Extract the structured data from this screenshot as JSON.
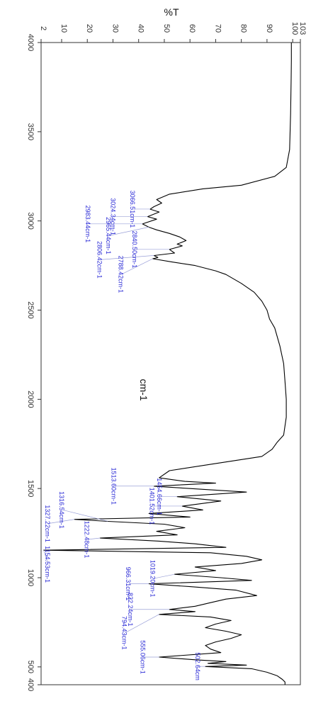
{
  "chart_data": {
    "type": "line",
    "orientation": "rotated-90-clockwise",
    "xlabel": "cm-1",
    "ylabel": "%T",
    "xlim": [
      4000,
      400
    ],
    "ylim": [
      2,
      103
    ],
    "x_ticks": [
      4000,
      3500,
      3000,
      2500,
      2000,
      1500,
      1000,
      500,
      400
    ],
    "y_ticks": [
      2,
      10,
      20,
      30,
      40,
      50,
      60,
      70,
      80,
      90,
      100,
      103
    ],
    "x_tick_labels": [
      "4000",
      "3500",
      "3000",
      "2500",
      "2000",
      "1500",
      "1000",
      "500",
      "400"
    ],
    "y_tick_labels": [
      "2",
      "10",
      "20",
      "30",
      "40",
      "50",
      "60",
      "70",
      "80",
      "90",
      "100",
      "103"
    ],
    "line_color": "#000000",
    "label_color": "#2b2bd6",
    "series": [
      {
        "x": [
          4000,
          3900,
          3800,
          3700,
          3600,
          3500,
          3400,
          3300,
          3250,
          3200,
          3180,
          3150,
          3120,
          3100,
          3080,
          3066,
          3050,
          3024,
          3010,
          2983,
          2965,
          2950,
          2930,
          2910,
          2890,
          2870,
          2860,
          2840,
          2820,
          2806,
          2795,
          2788,
          2770,
          2750,
          2720,
          2700,
          2650,
          2600,
          2550,
          2500,
          2450,
          2400,
          2300,
          2200,
          2100,
          2000,
          1900,
          1800,
          1760,
          1720,
          1680,
          1640,
          1600,
          1560,
          1540,
          1530,
          1513,
          1500,
          1480,
          1454,
          1430,
          1401,
          1380,
          1360,
          1340,
          1327,
          1316,
          1300,
          1280,
          1260,
          1240,
          1222,
          1205,
          1190,
          1170,
          1154,
          1140,
          1120,
          1100,
          1080,
          1060,
          1040,
          1019,
          1000,
          985,
          966,
          950,
          930,
          900,
          880,
          860,
          840,
          822,
          810,
          794,
          780,
          760,
          740,
          720,
          700,
          680,
          660,
          640,
          620,
          600,
          580,
          555,
          540,
          530,
          520,
          510,
          502,
          490,
          470,
          450,
          430,
          415,
          400
        ],
        "y": [
          99.5,
          99.5,
          99.4,
          99.3,
          99.2,
          99.0,
          98.8,
          97.5,
          93,
          80,
          65,
          52,
          47,
          49,
          46,
          44.5,
          48,
          43.5,
          47,
          41.5,
          44,
          47,
          52,
          56,
          58.5,
          55,
          57,
          52,
          54,
          46,
          47.5,
          45.5,
          53,
          62,
          70,
          74,
          80,
          85,
          88,
          90,
          91,
          93,
          95,
          96.5,
          97,
          97.5,
          97.5,
          96.5,
          94,
          92,
          88,
          70,
          52,
          48,
          58,
          70,
          46,
          60,
          82,
          55,
          72,
          57,
          65,
          44,
          60,
          15,
          28,
          50,
          58,
          47,
          55,
          25,
          48,
          62,
          74,
          3,
          68,
          82,
          88,
          80,
          62,
          70,
          54,
          72,
          84,
          44,
          60,
          78,
          86,
          74,
          68,
          62,
          52,
          62,
          48,
          68,
          76,
          70,
          66,
          74,
          80,
          76,
          70,
          66,
          68,
          72,
          48,
          62,
          74,
          67,
          82,
          66,
          84,
          90,
          94,
          96,
          97,
          97
        ]
      }
    ],
    "peaks": [
      {
        "x": 3066.51,
        "y": 44.5,
        "label": "3066.51cm-1"
      },
      {
        "x": 3024.34,
        "y": 43.5,
        "label": "3024.34cm-1"
      },
      {
        "x": 2983.44,
        "y": 41.5,
        "label": "2983.44cm-1"
      },
      {
        "x": 2965.44,
        "y": 44,
        "label": "2965.44cm-1"
      },
      {
        "x": 2840.5,
        "y": 52,
        "label": "2840.50cm-1"
      },
      {
        "x": 2806.42,
        "y": 46,
        "label": "2806.42cm-1"
      },
      {
        "x": 2788.42,
        "y": 45.5,
        "label": "2788.42cm-1"
      },
      {
        "x": 1454.66,
        "y": 55,
        "label": "1454.66cm-1"
      },
      {
        "x": 1401.52,
        "y": 57,
        "label": "1401.52cm-1"
      },
      {
        "x": 1513.6,
        "y": 46,
        "label": "1513.60cm-1"
      },
      {
        "x": 1316.54,
        "y": 28,
        "label": "1316.54cm-1"
      },
      {
        "x": 1327.22,
        "y": 15,
        "label": "1327.22cm-1"
      },
      {
        "x": 1222.48,
        "y": 25,
        "label": "1222.48cm-1"
      },
      {
        "x": 1019.2,
        "y": 54,
        "label": "1019.20cm-1"
      },
      {
        "x": 1154.53,
        "y": 3,
        "label": "1154.53cm-1"
      },
      {
        "x": 966.31,
        "y": 44,
        "label": "966.31cm-1"
      },
      {
        "x": 822.24,
        "y": 52,
        "label": "822.24cm-1"
      },
      {
        "x": 794.43,
        "y": 48,
        "label": "794.43cm-1"
      },
      {
        "x": 555.06,
        "y": 48,
        "label": "555.06cm-1"
      },
      {
        "x": 502.64,
        "y": 66,
        "label": "502.64cm"
      }
    ]
  }
}
